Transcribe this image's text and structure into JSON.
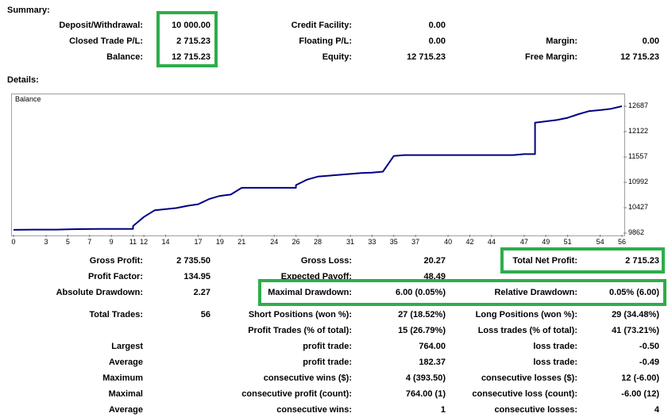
{
  "summary": {
    "title": "Summary:",
    "deposit_label": "Deposit/Withdrawal:",
    "deposit_value": "10 000.00",
    "closed_pl_label": "Closed Trade P/L:",
    "closed_pl_value": "2 715.23",
    "balance_label": "Balance:",
    "balance_value": "12 715.23",
    "credit_label": "Credit Facility:",
    "credit_value": "0.00",
    "floating_label": "Floating P/L:",
    "floating_value": "0.00",
    "equity_label": "Equity:",
    "equity_value": "12 715.23",
    "margin_label": "Margin:",
    "margin_value": "0.00",
    "free_margin_label": "Free Margin:",
    "free_margin_value": "12 715.23"
  },
  "details": {
    "title": "Details:"
  },
  "chart_data": {
    "type": "line",
    "title": "Balance",
    "x_ticks": [
      "0",
      "3",
      "5",
      "7",
      "9",
      "11",
      "12",
      "14",
      "17",
      "19",
      "21",
      "24",
      "26",
      "28",
      "31",
      "33",
      "35",
      "37",
      "40",
      "42",
      "44",
      "47",
      "49",
      "51",
      "54",
      "56"
    ],
    "y_ticks": [
      "12687",
      "12122",
      "11557",
      "10992",
      "10427",
      "9862"
    ],
    "xlim": [
      0,
      56
    ],
    "ylim": [
      9862,
      12687
    ],
    "series": [
      {
        "x": [
          0,
          2,
          4,
          5,
          6,
          8,
          9,
          10,
          11,
          11,
          12,
          13,
          15,
          16,
          17,
          18,
          19,
          20,
          21,
          22,
          24,
          26,
          26,
          27,
          28,
          30,
          31,
          32,
          33,
          34,
          35,
          36,
          38,
          40,
          42,
          44,
          46,
          47,
          48,
          48,
          50,
          51,
          52,
          53,
          54,
          55,
          56
        ],
        "y": [
          9935,
          9940,
          9940,
          9945,
          9950,
          9955,
          9955,
          9955,
          9955,
          10020,
          10220,
          10370,
          10420,
          10470,
          10505,
          10620,
          10690,
          10720,
          10870,
          10870,
          10870,
          10870,
          10930,
          11050,
          11120,
          11160,
          11180,
          11200,
          11210,
          11230,
          11580,
          11600,
          11600,
          11600,
          11600,
          11600,
          11600,
          11620,
          11620,
          12320,
          12380,
          12430,
          12510,
          12580,
          12600,
          12630,
          12687
        ]
      }
    ]
  },
  "stats": {
    "gross_profit_label": "Gross Profit:",
    "gross_profit_value": "2 735.50",
    "gross_loss_label": "Gross Loss:",
    "gross_loss_value": "20.27",
    "total_net_profit_label": "Total Net Profit:",
    "total_net_profit_value": "2 715.23",
    "profit_factor_label": "Profit Factor:",
    "profit_factor_value": "134.95",
    "expected_payoff_label": "Expected Payoff:",
    "expected_payoff_value": "48.49",
    "absolute_drawdown_label": "Absolute Drawdown:",
    "absolute_drawdown_value": "2.27",
    "maximal_drawdown_label": "Maximal Drawdown:",
    "maximal_drawdown_value": "6.00 (0.05%)",
    "relative_drawdown_label": "Relative Drawdown:",
    "relative_drawdown_value": "0.05% (6.00)",
    "total_trades_label": "Total Trades:",
    "total_trades_value": "56",
    "short_positions_label": "Short Positions (won %):",
    "short_positions_value": "27 (18.52%)",
    "long_positions_label": "Long Positions (won %):",
    "long_positions_value": "29 (34.48%)",
    "profit_trades_label": "Profit Trades (% of total):",
    "profit_trades_value": "15 (26.79%)",
    "loss_trades_label": "Loss trades (% of total):",
    "loss_trades_value": "41 (73.21%)",
    "largest_label": "Largest",
    "largest_profit_label": "profit trade:",
    "largest_profit_value": "764.00",
    "largest_loss_label": "loss trade:",
    "largest_loss_value": "-0.50",
    "average_label": "Average",
    "average_profit_label": "profit trade:",
    "average_profit_value": "182.37",
    "average_loss_label": "loss trade:",
    "average_loss_value": "-0.49",
    "maximum_label": "Maximum",
    "max_cons_wins_label": "consecutive wins ($):",
    "max_cons_wins_value": "4 (393.50)",
    "max_cons_losses_label": "consecutive losses ($):",
    "max_cons_losses_value": "12 (-6.00)",
    "maximal_label": "Maximal",
    "maximal_cons_profit_label": "consecutive profit (count):",
    "maximal_cons_profit_value": "764.00 (1)",
    "maximal_cons_loss_label": "consecutive loss (count):",
    "maximal_cons_loss_value": "-6.00 (12)",
    "average2_label": "Average",
    "avg_cons_wins_label": "consecutive wins:",
    "avg_cons_wins_value": "1",
    "avg_cons_losses_label": "consecutive losses:",
    "avg_cons_losses_value": "4"
  },
  "highlight_color": "#2ead4b",
  "line_color": "#000080"
}
